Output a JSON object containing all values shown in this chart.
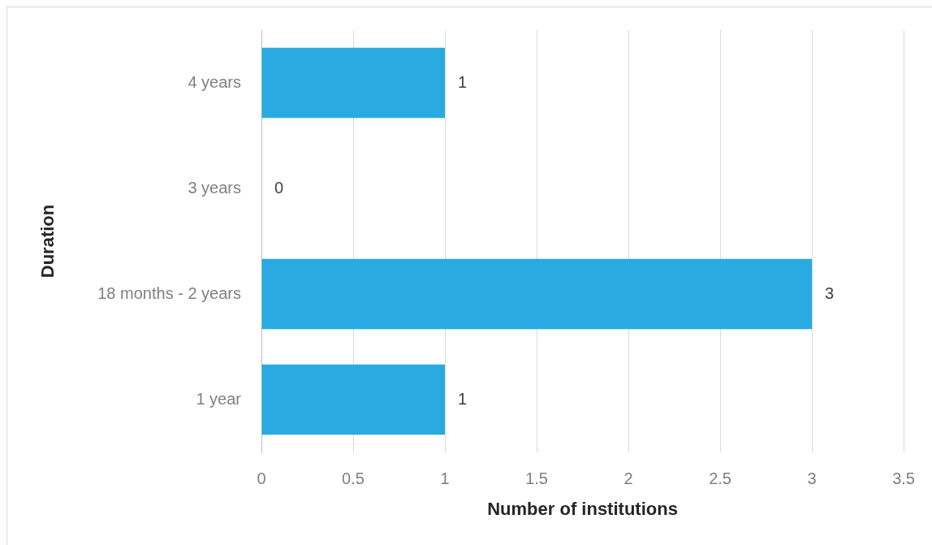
{
  "chart_data": {
    "type": "bar",
    "orientation": "horizontal",
    "categories": [
      "4 years",
      "3 years",
      "18 months - 2 years",
      "1 year"
    ],
    "values": [
      1,
      0,
      3,
      1
    ],
    "color": "#29abe2",
    "xlim": [
      0,
      3.5
    ],
    "xticks": [
      0,
      0.5,
      1,
      1.5,
      2,
      2.5,
      3,
      3.5
    ],
    "xlabel": "Number of institutions",
    "ylabel": "Duration",
    "grid": "x",
    "data_labels": true
  }
}
